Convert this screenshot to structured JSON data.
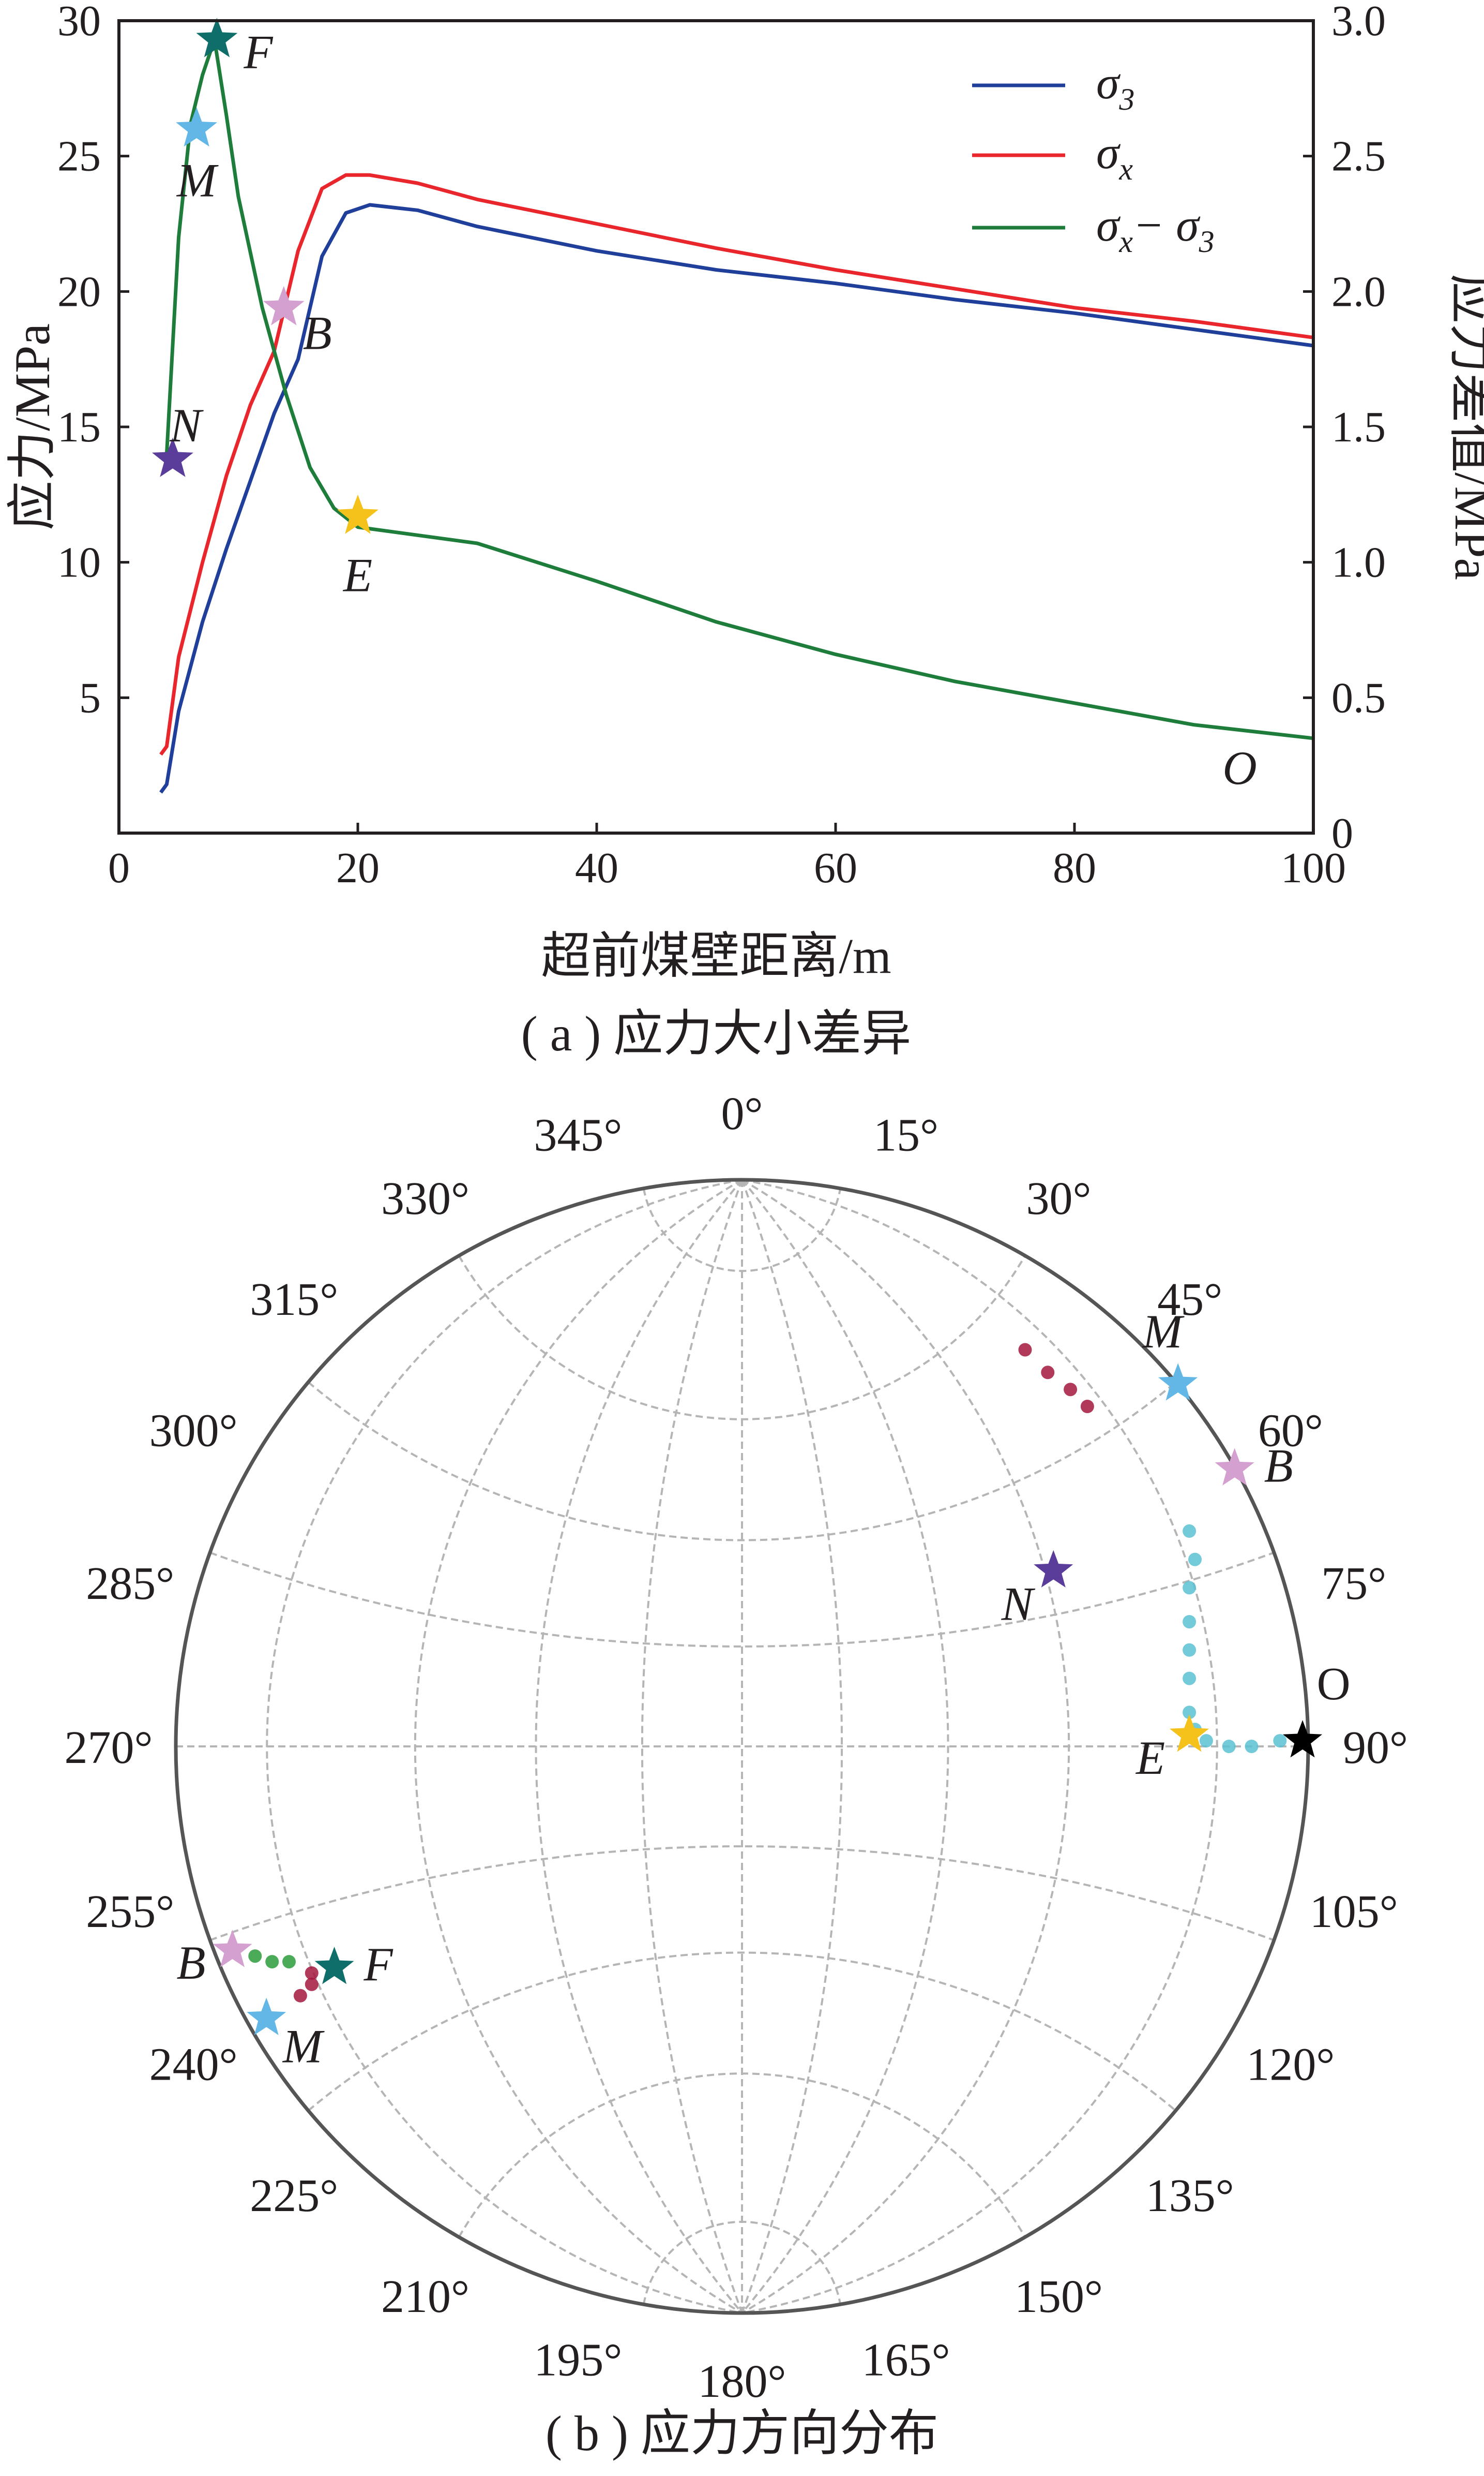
{
  "chart_data": [
    {
      "type": "line",
      "caption": "( a ) 应力大小差异",
      "xlabel": "超前煤壁距离/m",
      "ylabel": "应力/MPa",
      "ylabel_right": "应力差值/MPa",
      "xlim": [
        0,
        100
      ],
      "ylim": [
        0,
        30
      ],
      "ylim_right": [
        0,
        3.0
      ],
      "xticks": [
        "0",
        "20",
        "40",
        "60",
        "80",
        "100"
      ],
      "yticks": [
        "5",
        "10",
        "15",
        "20",
        "25",
        "30"
      ],
      "yticks_right": [
        "0",
        "0.5",
        "1.0",
        "1.5",
        "2.0",
        "2.5",
        "3.0"
      ],
      "legend_position": "top-right",
      "series": [
        {
          "name": "σ3",
          "legend_main": "σ",
          "legend_sub": "3",
          "axis": "left",
          "color": "#1f3f9a",
          "x": [
            3.5,
            4,
            5,
            7,
            9,
            11,
            13,
            15,
            17,
            19,
            21,
            25,
            30,
            40,
            50,
            60,
            70,
            80,
            90,
            100
          ],
          "y": [
            1.5,
            1.8,
            4.5,
            7.8,
            10.5,
            13.0,
            15.5,
            17.5,
            21.3,
            22.9,
            23.2,
            23.0,
            22.4,
            21.5,
            20.8,
            20.3,
            19.7,
            19.2,
            18.6,
            18.0
          ]
        },
        {
          "name": "σx",
          "legend_main": "σ",
          "legend_sub": "x",
          "axis": "left",
          "color": "#e8262b",
          "x": [
            3.5,
            4,
            5,
            7,
            9,
            11,
            13,
            15,
            17,
            19,
            21,
            25,
            30,
            40,
            50,
            60,
            70,
            80,
            90,
            100
          ],
          "y": [
            2.9,
            3.2,
            6.5,
            10.0,
            13.2,
            15.8,
            17.8,
            21.5,
            23.8,
            24.3,
            24.3,
            24.0,
            23.4,
            22.5,
            21.6,
            20.8,
            20.1,
            19.4,
            18.9,
            18.3
          ]
        },
        {
          "name": "σx− σ3",
          "legend_main": "σ",
          "legend_sub": "x",
          "legend_mid": "− σ",
          "legend_sub2": "3",
          "axis": "right",
          "color": "#1e7d3b",
          "x": [
            4,
            5,
            6,
            7,
            8,
            9,
            10,
            12,
            14,
            16,
            18,
            20,
            25,
            30,
            40,
            50,
            60,
            70,
            80,
            90,
            100
          ],
          "y": [
            1.4,
            2.2,
            2.62,
            2.8,
            2.93,
            2.65,
            2.35,
            1.94,
            1.62,
            1.35,
            1.2,
            1.13,
            1.1,
            1.07,
            0.93,
            0.78,
            0.66,
            0.56,
            0.48,
            0.4,
            0.35
          ]
        }
      ],
      "annotations": [
        {
          "label": "N",
          "x": 4.5,
          "y": 1.38,
          "color": "#5a3d9a"
        },
        {
          "label": "M",
          "x": 6.5,
          "y": 2.6,
          "color": "#63b7e6"
        },
        {
          "label": "F",
          "x": 8.2,
          "y": 2.93,
          "color": "#0f6e6a"
        },
        {
          "label": "B",
          "x": 13.8,
          "y": 1.94,
          "color": "#d3a0d0"
        },
        {
          "label": "E",
          "x": 20,
          "y": 1.17,
          "color": "#f4c21b"
        },
        {
          "label": "O",
          "x": 96,
          "y": 0.22,
          "color": "none"
        }
      ]
    },
    {
      "type": "scatter",
      "projection": "stereonet",
      "caption": "( b ) 应力方向分布",
      "azimuth_labels": [
        "0°",
        "15°",
        "30°",
        "45°",
        "60°",
        "75°",
        "90°",
        "105°",
        "120°",
        "135°",
        "150°",
        "165°",
        "180°",
        "195°",
        "210°",
        "225°",
        "240°",
        "255°",
        "270°",
        "285°",
        "300°",
        "315°",
        "330°",
        "345°"
      ],
      "point_groups": [
        {
          "name": "",
          "color": "#a3163d",
          "points": [
            [
              0.5,
              0.7
            ],
            [
              0.54,
              0.66
            ],
            [
              0.58,
              0.63
            ],
            [
              0.61,
              0.6
            ]
          ]
        },
        {
          "name": "",
          "color": "#5bc1d2",
          "points": [
            [
              0.79,
              0.38
            ],
            [
              0.8,
              0.33
            ],
            [
              0.79,
              0.28
            ],
            [
              0.79,
              0.22
            ],
            [
              0.79,
              0.17
            ],
            [
              0.79,
              0.12
            ],
            [
              0.79,
              0.06
            ],
            [
              0.8,
              0.03
            ],
            [
              0.82,
              0.01
            ],
            [
              0.86,
              0.0
            ],
            [
              0.9,
              0.0
            ],
            [
              0.95,
              0.01
            ],
            [
              0.99,
              0.01
            ]
          ]
        },
        {
          "name": "",
          "color": "#2d9c3c",
          "points": [
            [
              -0.86,
              -0.37
            ],
            [
              -0.83,
              -0.38
            ],
            [
              -0.8,
              -0.38
            ]
          ]
        },
        {
          "name": "",
          "color": "#a3163d",
          "points": [
            [
              -0.76,
              -0.4
            ],
            [
              -0.76,
              -0.42
            ],
            [
              -0.78,
              -0.44
            ]
          ]
        }
      ],
      "markers": [
        {
          "label": "M",
          "x": 0.77,
          "y": 0.64,
          "color": "#63b7e6"
        },
        {
          "label": "B",
          "x": 0.87,
          "y": 0.49,
          "color": "#d3a0d0"
        },
        {
          "label": "N",
          "x": 0.55,
          "y": 0.31,
          "color": "#5a3d9a"
        },
        {
          "label": "E",
          "x": 0.79,
          "y": 0.02,
          "color": "#f4c21b"
        },
        {
          "label": "O",
          "x": 0.99,
          "y": 0.01,
          "color": "#000000"
        },
        {
          "label": "B",
          "x": -0.9,
          "y": -0.36,
          "color": "#d3a0d0"
        },
        {
          "label": "F",
          "x": -0.72,
          "y": -0.39,
          "color": "#0f6e6a"
        },
        {
          "label": "M",
          "x": -0.84,
          "y": -0.48,
          "color": "#63b7e6"
        }
      ]
    }
  ]
}
